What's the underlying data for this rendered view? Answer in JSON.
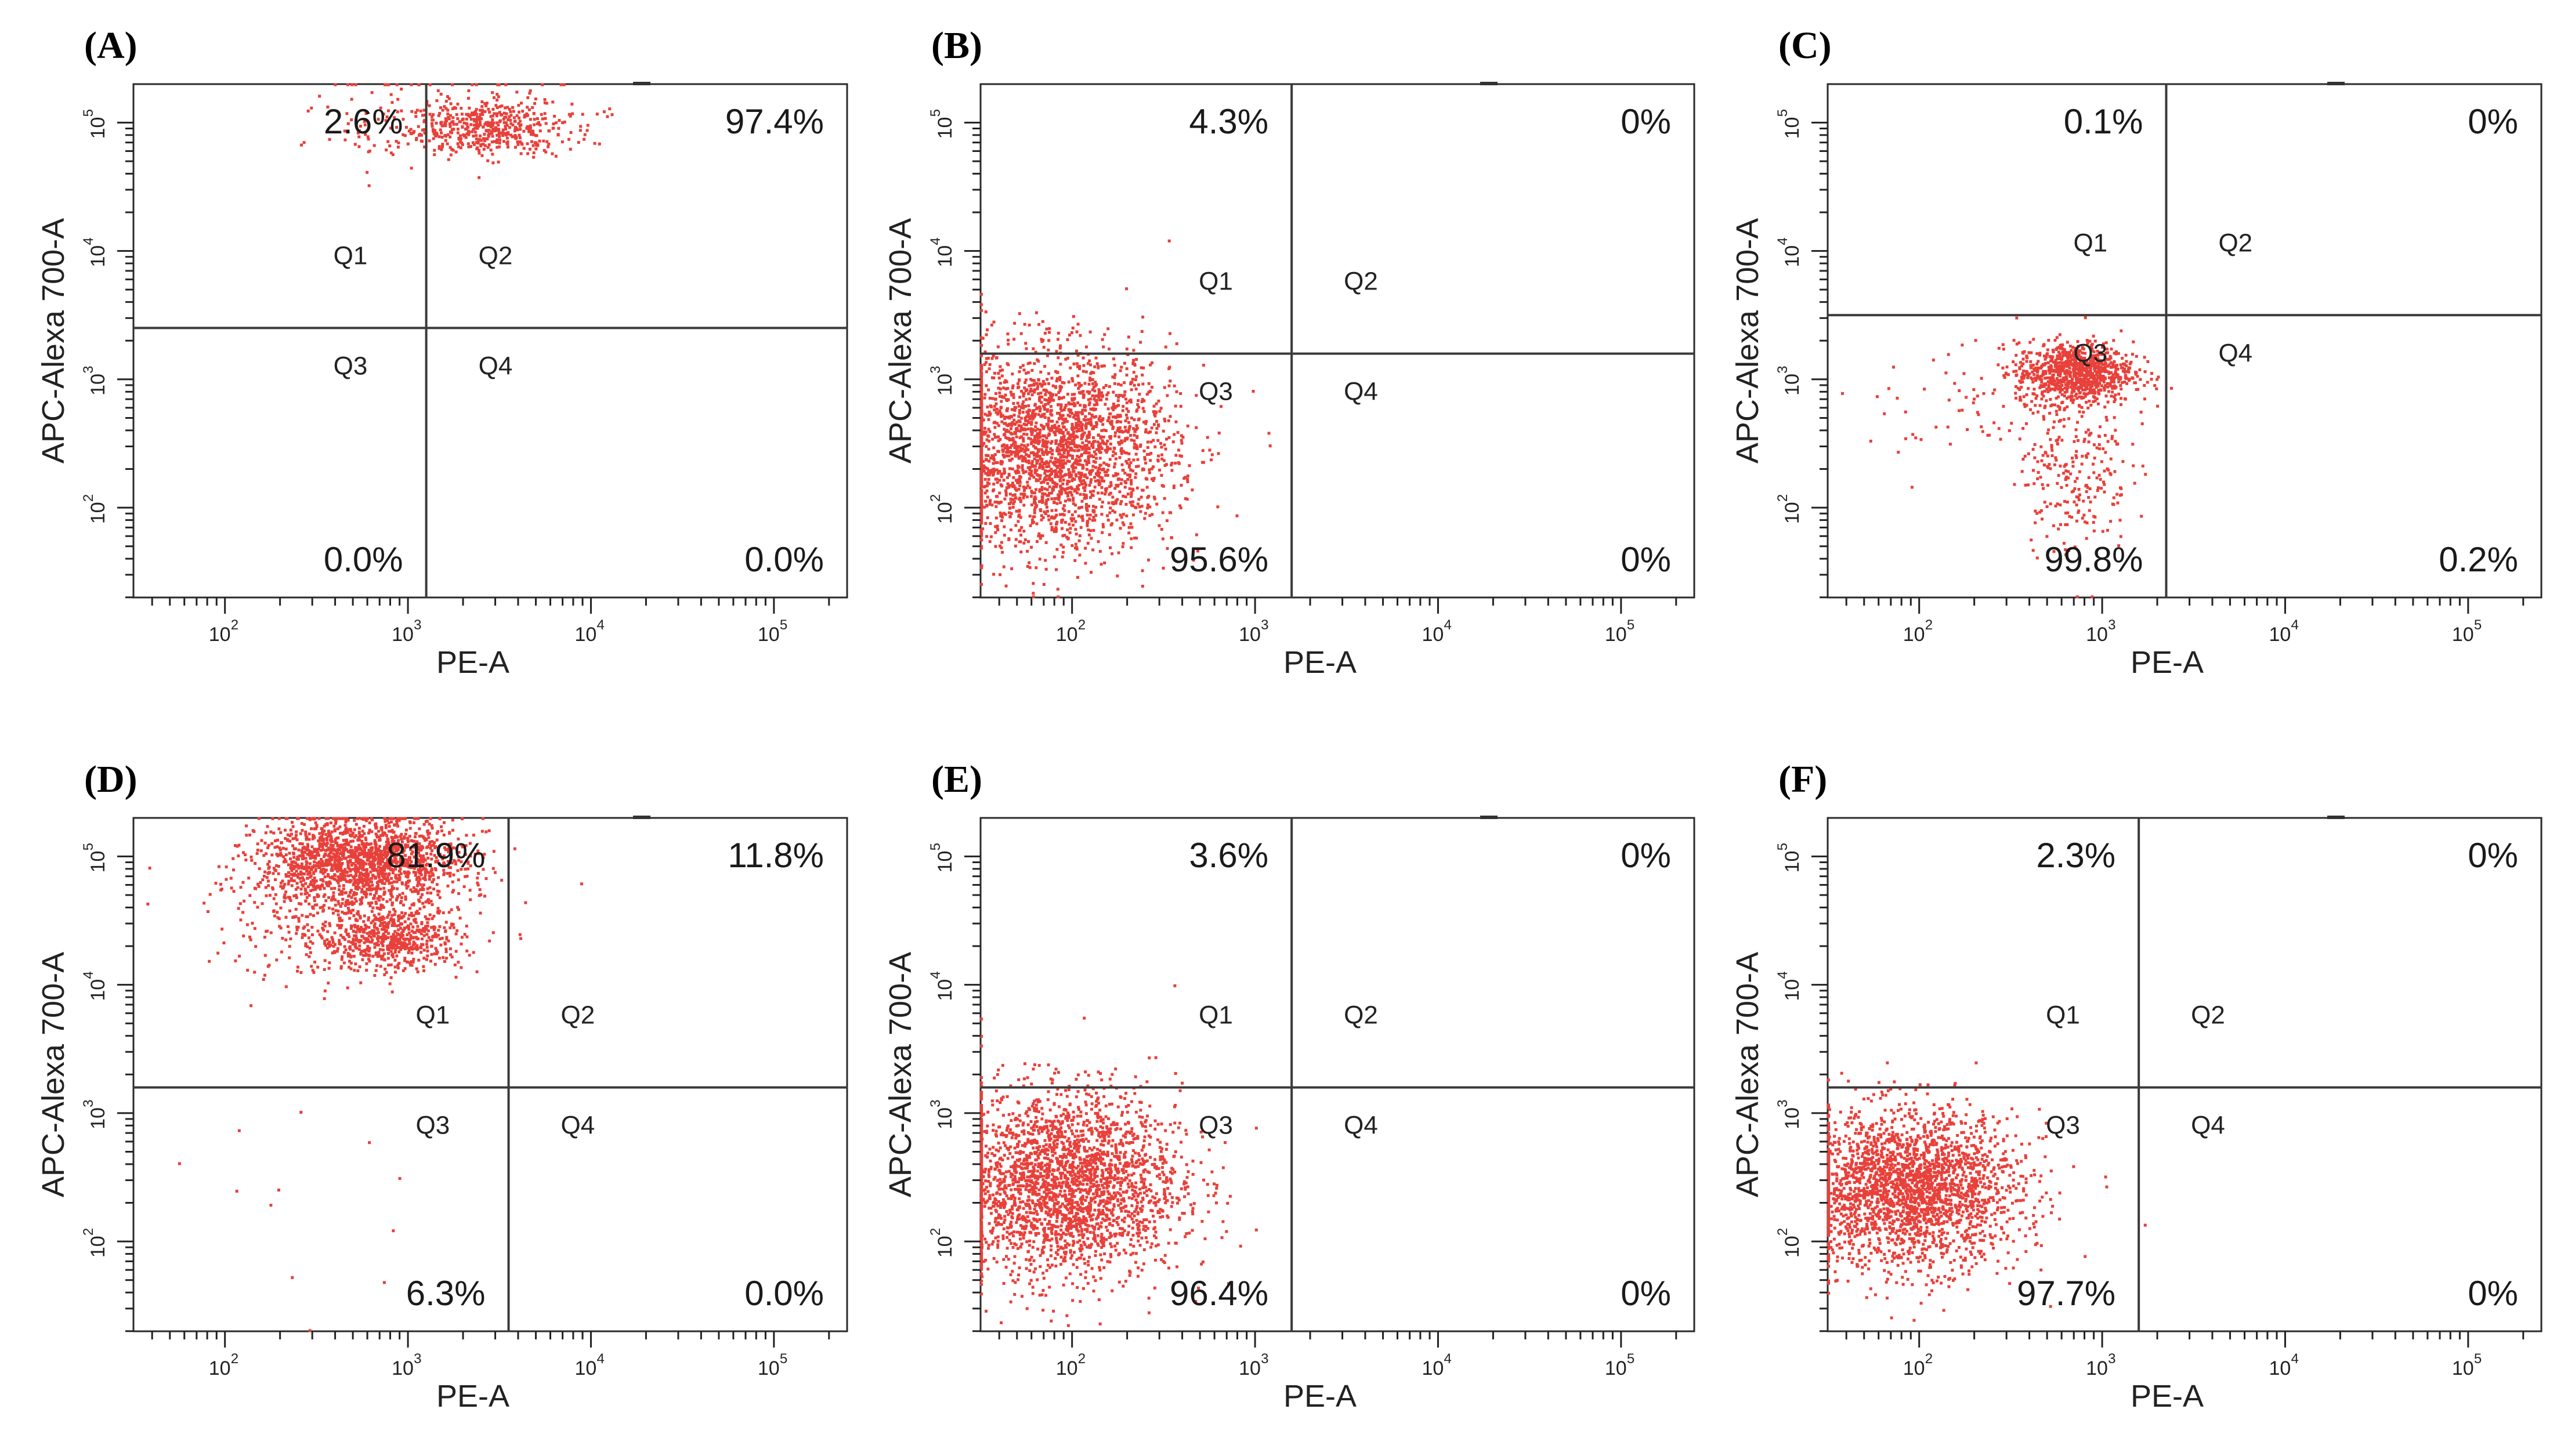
{
  "figure": {
    "x_axis_label": "PE-A",
    "y_axis_label": "APC-Alexa 700-A",
    "tick_labels": [
      "10",
      "10",
      "10",
      "10"
    ],
    "tick_exponents": [
      "2",
      "3",
      "4",
      "5"
    ],
    "quadrant_names": [
      "Q1",
      "Q2",
      "Q3",
      "Q4"
    ],
    "event_color": "#e8403a",
    "gate_line_color": "#3a3a3a"
  },
  "chart_data": [
    {
      "type": "scatter",
      "panel": "(A)",
      "xlabel": "PE-A",
      "ylabel": "APC-Alexa 700-A",
      "xlim_log10": [
        1.5,
        5.4
      ],
      "ylim_log10": [
        1.3,
        5.3
      ],
      "gate_x_log10": 3.1,
      "gate_y_log10": 3.4,
      "quadrant_percentages": {
        "Q1": "2.6%",
        "Q2": "97.4%",
        "Q3": "0.0%",
        "Q4": "0.0%"
      },
      "populations": [
        {
          "center_log10": [
            3.45,
            4.95
          ],
          "spread_log10": [
            0.22,
            0.1
          ],
          "events": 420
        },
        {
          "center_log10": [
            3.2,
            5.05
          ],
          "spread_log10": [
            0.35,
            0.18
          ],
          "events": 160
        },
        {
          "center_log10": [
            2.7,
            4.9
          ],
          "spread_log10": [
            0.18,
            0.15
          ],
          "events": 14
        }
      ]
    },
    {
      "type": "scatter",
      "panel": "(B)",
      "xlabel": "PE-A",
      "ylabel": "APC-Alexa 700-A",
      "xlim_log10": [
        1.5,
        5.4
      ],
      "ylim_log10": [
        1.3,
        5.3
      ],
      "gate_x_log10": 3.2,
      "gate_y_log10": 3.2,
      "quadrant_percentages": {
        "Q1": "4.3%",
        "Q2": "0%",
        "Q3": "95.6%",
        "Q4": "0%"
      },
      "populations": [
        {
          "center_log10": [
            1.9,
            2.45
          ],
          "spread_log10": [
            0.33,
            0.38
          ],
          "events": 2600
        }
      ]
    },
    {
      "type": "scatter",
      "panel": "(C)",
      "xlabel": "PE-A",
      "ylabel": "APC-Alexa 700-A",
      "xlim_log10": [
        1.5,
        5.4
      ],
      "ylim_log10": [
        1.3,
        5.3
      ],
      "gate_x_log10": 3.35,
      "gate_y_log10": 3.5,
      "quadrant_percentages": {
        "Q1": "0.1%",
        "Q2": "0%",
        "Q3": "99.8%",
        "Q4": "0.2%"
      },
      "populations": [
        {
          "center_log10": [
            2.85,
            3.05
          ],
          "spread_log10": [
            0.16,
            0.12
          ],
          "events": 900
        },
        {
          "center_log10": [
            2.85,
            2.35
          ],
          "spread_log10": [
            0.15,
            0.35
          ],
          "events": 260
        },
        {
          "center_log10": [
            2.3,
            2.75
          ],
          "spread_log10": [
            0.3,
            0.25
          ],
          "events": 60
        }
      ]
    },
    {
      "type": "scatter",
      "panel": "(D)",
      "xlabel": "PE-A",
      "ylabel": "APC-Alexa 700-A",
      "xlim_log10": [
        1.5,
        5.4
      ],
      "ylim_log10": [
        1.3,
        5.3
      ],
      "gate_x_log10": 3.55,
      "gate_y_log10": 3.2,
      "quadrant_percentages": {
        "Q1": "81.9%",
        "Q2": "11.8%",
        "Q3": "6.3%",
        "Q4": "0.0%"
      },
      "populations": [
        {
          "center_log10": [
            2.75,
            4.95
          ],
          "spread_log10": [
            0.28,
            0.18
          ],
          "events": 1700
        },
        {
          "center_log10": [
            2.9,
            4.35
          ],
          "spread_log10": [
            0.2,
            0.12
          ],
          "events": 600
        },
        {
          "center_log10": [
            2.5,
            4.55
          ],
          "spread_log10": [
            0.3,
            0.3
          ],
          "events": 200
        },
        {
          "center_log10": [
            2.6,
            2.4
          ],
          "spread_log10": [
            0.4,
            0.5
          ],
          "events": 12
        }
      ]
    },
    {
      "type": "scatter",
      "panel": "(E)",
      "xlabel": "PE-A",
      "ylabel": "APC-Alexa 700-A",
      "xlim_log10": [
        1.5,
        5.4
      ],
      "ylim_log10": [
        1.3,
        5.3
      ],
      "gate_x_log10": 3.2,
      "gate_y_log10": 3.2,
      "quadrant_percentages": {
        "Q1": "3.6%",
        "Q2": "0%",
        "Q3": "96.4%",
        "Q4": "0%"
      },
      "populations": [
        {
          "center_log10": [
            1.95,
            2.45
          ],
          "spread_log10": [
            0.32,
            0.36
          ],
          "events": 2600
        }
      ]
    },
    {
      "type": "scatter",
      "panel": "(F)",
      "xlabel": "PE-A",
      "ylabel": "APC-Alexa 700-A",
      "xlim_log10": [
        1.5,
        5.4
      ],
      "ylim_log10": [
        1.3,
        5.3
      ],
      "gate_x_log10": 3.2,
      "gate_y_log10": 3.2,
      "quadrant_percentages": {
        "Q1": "2.3%",
        "Q2": "0%",
        "Q3": "97.7%",
        "Q4": "0%"
      },
      "populations": [
        {
          "center_log10": [
            1.95,
            2.4
          ],
          "spread_log10": [
            0.3,
            0.3
          ],
          "events": 2400
        }
      ]
    }
  ]
}
